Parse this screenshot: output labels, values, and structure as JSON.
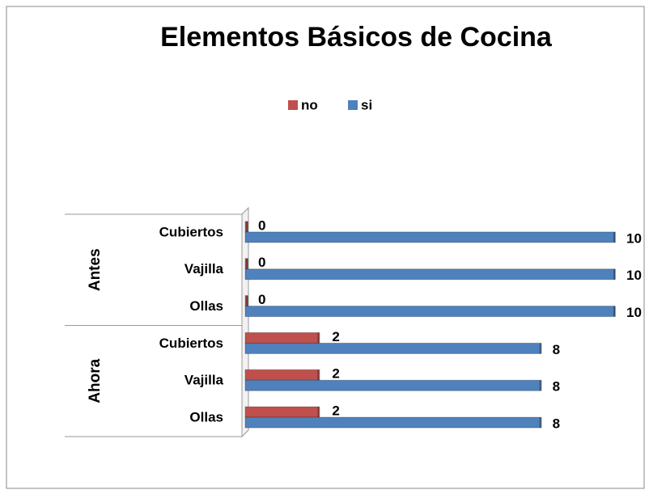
{
  "chart_data": {
    "type": "bar",
    "title": "Elementos  Básicos de Cocina",
    "groups": [
      {
        "name": "Antes",
        "categories": [
          "Cubiertos",
          "Vajilla",
          "Ollas"
        ]
      },
      {
        "name": "Ahora",
        "categories": [
          "Cubiertos",
          "Vajilla",
          "Ollas"
        ]
      }
    ],
    "series": [
      {
        "name": "no",
        "color": "#c0504d",
        "values": [
          0,
          0,
          0,
          2,
          2,
          2
        ]
      },
      {
        "name": "si",
        "color": "#4f81bd",
        "values": [
          10,
          10,
          10,
          8,
          8,
          8
        ]
      }
    ],
    "xlim": [
      0,
      10
    ],
    "legend": "top"
  }
}
